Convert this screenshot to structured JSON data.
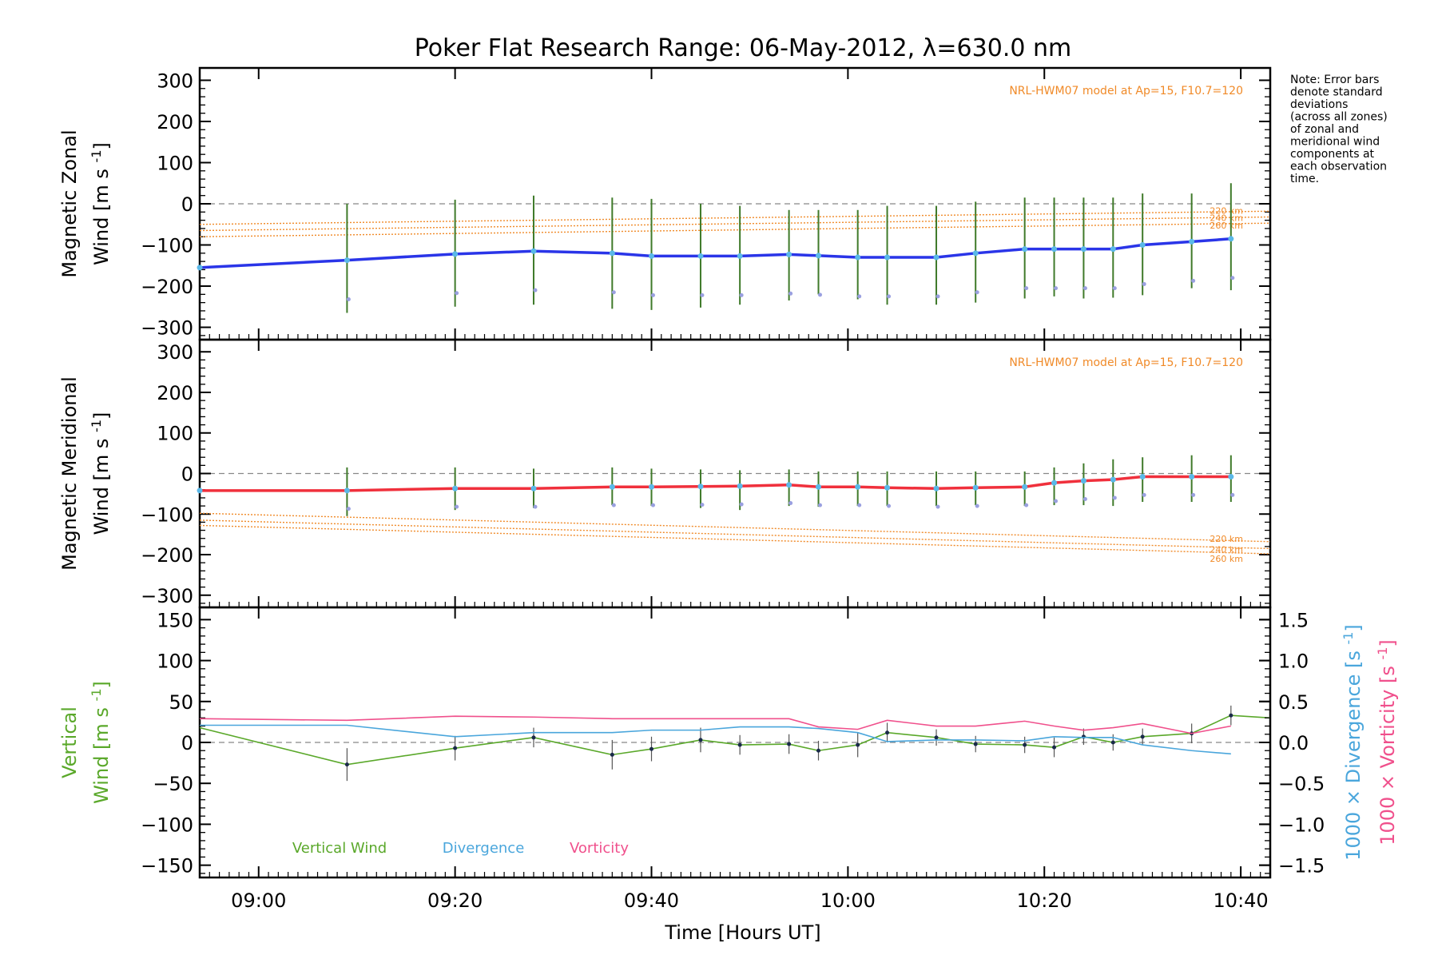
{
  "title": "Poker Flat Research Range: 06-May-2012, λ=630.0 nm",
  "note": [
    "Note: Error bars",
    "denote standard",
    "deviations",
    "(across all zones)",
    "of zonal and",
    "meridional wind",
    "components at",
    "each observation",
    "time."
  ],
  "colors": {
    "zonal": "#2a35e8",
    "meridional": "#f0303c",
    "model": "#f08a28",
    "vertical": "#5aa82a",
    "divergence": "#4aa6dc",
    "vorticity": "#f0508c",
    "zero_line": "#888888",
    "errbar": "#3f7a2a",
    "point": "#1a2a4a",
    "scatter": "#9aa0e0"
  },
  "chart_data": [
    {
      "type": "line",
      "panel": "zonal",
      "ylabel_line1": "Magnetic Zonal",
      "ylabel_line2": "Wind",
      "ylabel_units": "[m s",
      "ylabel_sup": "-1",
      "ylabel_close": "]",
      "ylim": [
        -330,
        330
      ],
      "yticks": [
        300,
        200,
        100,
        0,
        -100,
        -200,
        -300
      ],
      "ytick_labels": [
        "300",
        "200",
        "100",
        "0",
        "−100",
        "−200",
        "−300"
      ],
      "model_label": "NRL-HWM07 model at Ap=15, F10.7=120",
      "model_levels": [
        "220 km",
        "240 km",
        "260 km"
      ],
      "model_series": [
        {
          "name": "220 km",
          "x": [
            "08:54",
            "10:43"
          ],
          "y": [
            -50,
            -18
          ]
        },
        {
          "name": "240 km",
          "x": [
            "08:54",
            "10:43"
          ],
          "y": [
            -65,
            -32
          ]
        },
        {
          "name": "260 km",
          "x": [
            "08:54",
            "10:43"
          ],
          "y": [
            -80,
            -47
          ]
        }
      ],
      "series": [
        {
          "name": "Zonal wind",
          "x": [
            "08:54",
            "09:09",
            "09:20",
            "09:28",
            "09:36",
            "09:40",
            "09:45",
            "09:49",
            "09:54",
            "09:57",
            "10:01",
            "10:04",
            "10:09",
            "10:13",
            "10:18",
            "10:21",
            "10:24",
            "10:27",
            "10:30",
            "10:35",
            "10:39"
          ],
          "y": [
            -155,
            -137,
            -122,
            -115,
            -120,
            -127,
            -127,
            -127,
            -123,
            -126,
            -130,
            -130,
            -130,
            -120,
            -110,
            -110,
            -110,
            -110,
            -100,
            -92,
            -85
          ],
          "err_low": [
            null,
            -265,
            -250,
            -245,
            -255,
            -258,
            -252,
            -245,
            -235,
            -220,
            -232,
            -245,
            -245,
            -240,
            -230,
            -225,
            -230,
            -228,
            -222,
            -205,
            -210
          ],
          "err_high": [
            null,
            0,
            10,
            20,
            15,
            12,
            0,
            -5,
            -15,
            -15,
            -15,
            -5,
            -5,
            5,
            15,
            15,
            15,
            15,
            25,
            25,
            50
          ]
        }
      ]
    },
    {
      "type": "line",
      "panel": "meridional",
      "ylabel_line1": "Magnetic Meridional",
      "ylabel_line2": "Wind",
      "ylabel_units": "[m s",
      "ylabel_sup": "-1",
      "ylabel_close": "]",
      "ylim": [
        -330,
        330
      ],
      "yticks": [
        300,
        200,
        100,
        0,
        -100,
        -200,
        -300
      ],
      "ytick_labels": [
        "300",
        "200",
        "100",
        "0",
        "−100",
        "−200",
        "−300"
      ],
      "model_label": "NRL-HWM07 model at Ap=15, F10.7=120",
      "model_levels": [
        "220 km",
        "240 km",
        "260 km"
      ],
      "model_series": [
        {
          "name": "220 km",
          "x": [
            "08:54",
            "10:43"
          ],
          "y": [
            -98,
            -168
          ]
        },
        {
          "name": "240 km",
          "x": [
            "08:54",
            "10:43"
          ],
          "y": [
            -115,
            -185
          ]
        },
        {
          "name": "260 km",
          "x": [
            "08:54",
            "10:43"
          ],
          "y": [
            -128,
            -198
          ]
        }
      ],
      "series": [
        {
          "name": "Meridional wind",
          "x": [
            "08:54",
            "09:09",
            "09:20",
            "09:28",
            "09:36",
            "09:40",
            "09:45",
            "09:49",
            "09:54",
            "09:57",
            "10:01",
            "10:04",
            "10:09",
            "10:13",
            "10:18",
            "10:21",
            "10:24",
            "10:27",
            "10:30",
            "10:35",
            "10:39"
          ],
          "y": [
            -42,
            -42,
            -37,
            -37,
            -33,
            -33,
            -32,
            -31,
            -28,
            -33,
            -33,
            -35,
            -37,
            -35,
            -33,
            -23,
            -18,
            -15,
            -8,
            -8,
            -8
          ],
          "err_low": [
            null,
            -105,
            -90,
            -85,
            -78,
            -80,
            -85,
            -90,
            -80,
            -82,
            -80,
            -80,
            -80,
            -78,
            -80,
            -78,
            -78,
            -80,
            -70,
            -70,
            -70
          ],
          "err_high": [
            null,
            15,
            15,
            12,
            15,
            12,
            10,
            8,
            10,
            5,
            5,
            5,
            5,
            5,
            5,
            15,
            25,
            35,
            40,
            45,
            45
          ]
        }
      ]
    },
    {
      "type": "line",
      "panel": "vertical",
      "ylabel_line1": "Vertical",
      "ylabel_line2": "Wind",
      "ylabel_units": "[m s",
      "ylabel_sup": "-1",
      "ylabel_close": "]",
      "ylim": [
        -165,
        165
      ],
      "yticks": [
        150,
        100,
        50,
        0,
        -50,
        -100,
        -150
      ],
      "ytick_labels": [
        "150",
        "100",
        "50",
        "0",
        "−50",
        "−100",
        "−150"
      ],
      "y2lim": [
        -1.65,
        1.65
      ],
      "y2ticks": [
        1.5,
        1.0,
        0.5,
        0.0,
        -0.5,
        -1.0,
        -1.5
      ],
      "y2tick_labels": [
        "1.5",
        "1.0",
        "0.5",
        "0.0",
        "−0.5",
        "−1.0",
        "−1.5"
      ],
      "y2label_div": "1000 × Divergence [s",
      "y2label_vor": "1000 × Vorticity [s",
      "y2label_sup": "-1",
      "y2label_close": "]",
      "legend": [
        "Vertical Wind",
        "Divergence",
        "Vorticity"
      ],
      "xlabel": "Time [Hours UT]",
      "xticks": [
        "09:00",
        "09:20",
        "09:40",
        "10:00",
        "10:20",
        "10:40"
      ],
      "series": [
        {
          "name": "Vertical Wind",
          "x": [
            "08:54",
            "09:09",
            "09:20",
            "09:28",
            "09:36",
            "09:40",
            "09:45",
            "09:49",
            "09:54",
            "09:57",
            "10:01",
            "10:04",
            "10:09",
            "10:13",
            "10:18",
            "10:21",
            "10:24",
            "10:27",
            "10:30",
            "10:35",
            "10:39",
            "10:43"
          ],
          "y": [
            18,
            -27,
            -7,
            6,
            -15,
            -8,
            3,
            -3,
            -2,
            -10,
            -3,
            12,
            6,
            -2,
            -3,
            -6,
            7,
            0,
            7,
            11,
            33,
            30
          ],
          "err_half": [
            null,
            20,
            15,
            12,
            18,
            15,
            15,
            12,
            12,
            12,
            15,
            12,
            10,
            10,
            10,
            12,
            10,
            10,
            10,
            12,
            12,
            null
          ]
        },
        {
          "name": "Divergence",
          "axis": "right",
          "x": [
            "08:54",
            "09:09",
            "09:20",
            "09:28",
            "09:36",
            "09:40",
            "09:45",
            "09:49",
            "09:54",
            "09:57",
            "10:01",
            "10:04",
            "10:09",
            "10:13",
            "10:18",
            "10:21",
            "10:24",
            "10:27",
            "10:30",
            "10:35",
            "10:39"
          ],
          "y": [
            0.21,
            0.21,
            0.07,
            0.12,
            0.12,
            0.15,
            0.15,
            0.19,
            0.19,
            0.17,
            0.12,
            0.01,
            0.03,
            0.03,
            0.02,
            0.07,
            0.06,
            0.06,
            -0.03,
            -0.1,
            -0.14
          ]
        },
        {
          "name": "Vorticity",
          "axis": "right",
          "x": [
            "08:54",
            "09:09",
            "09:20",
            "09:28",
            "09:36",
            "09:40",
            "09:45",
            "09:49",
            "09:54",
            "09:57",
            "10:01",
            "10:04",
            "10:09",
            "10:13",
            "10:18",
            "10:21",
            "10:24",
            "10:27",
            "10:30",
            "10:35",
            "10:39"
          ],
          "y": [
            0.29,
            0.27,
            0.32,
            0.31,
            0.29,
            0.29,
            0.29,
            0.29,
            0.29,
            0.19,
            0.16,
            0.27,
            0.2,
            0.2,
            0.26,
            0.2,
            0.15,
            0.18,
            0.23,
            0.11,
            0.2
          ]
        }
      ]
    }
  ]
}
